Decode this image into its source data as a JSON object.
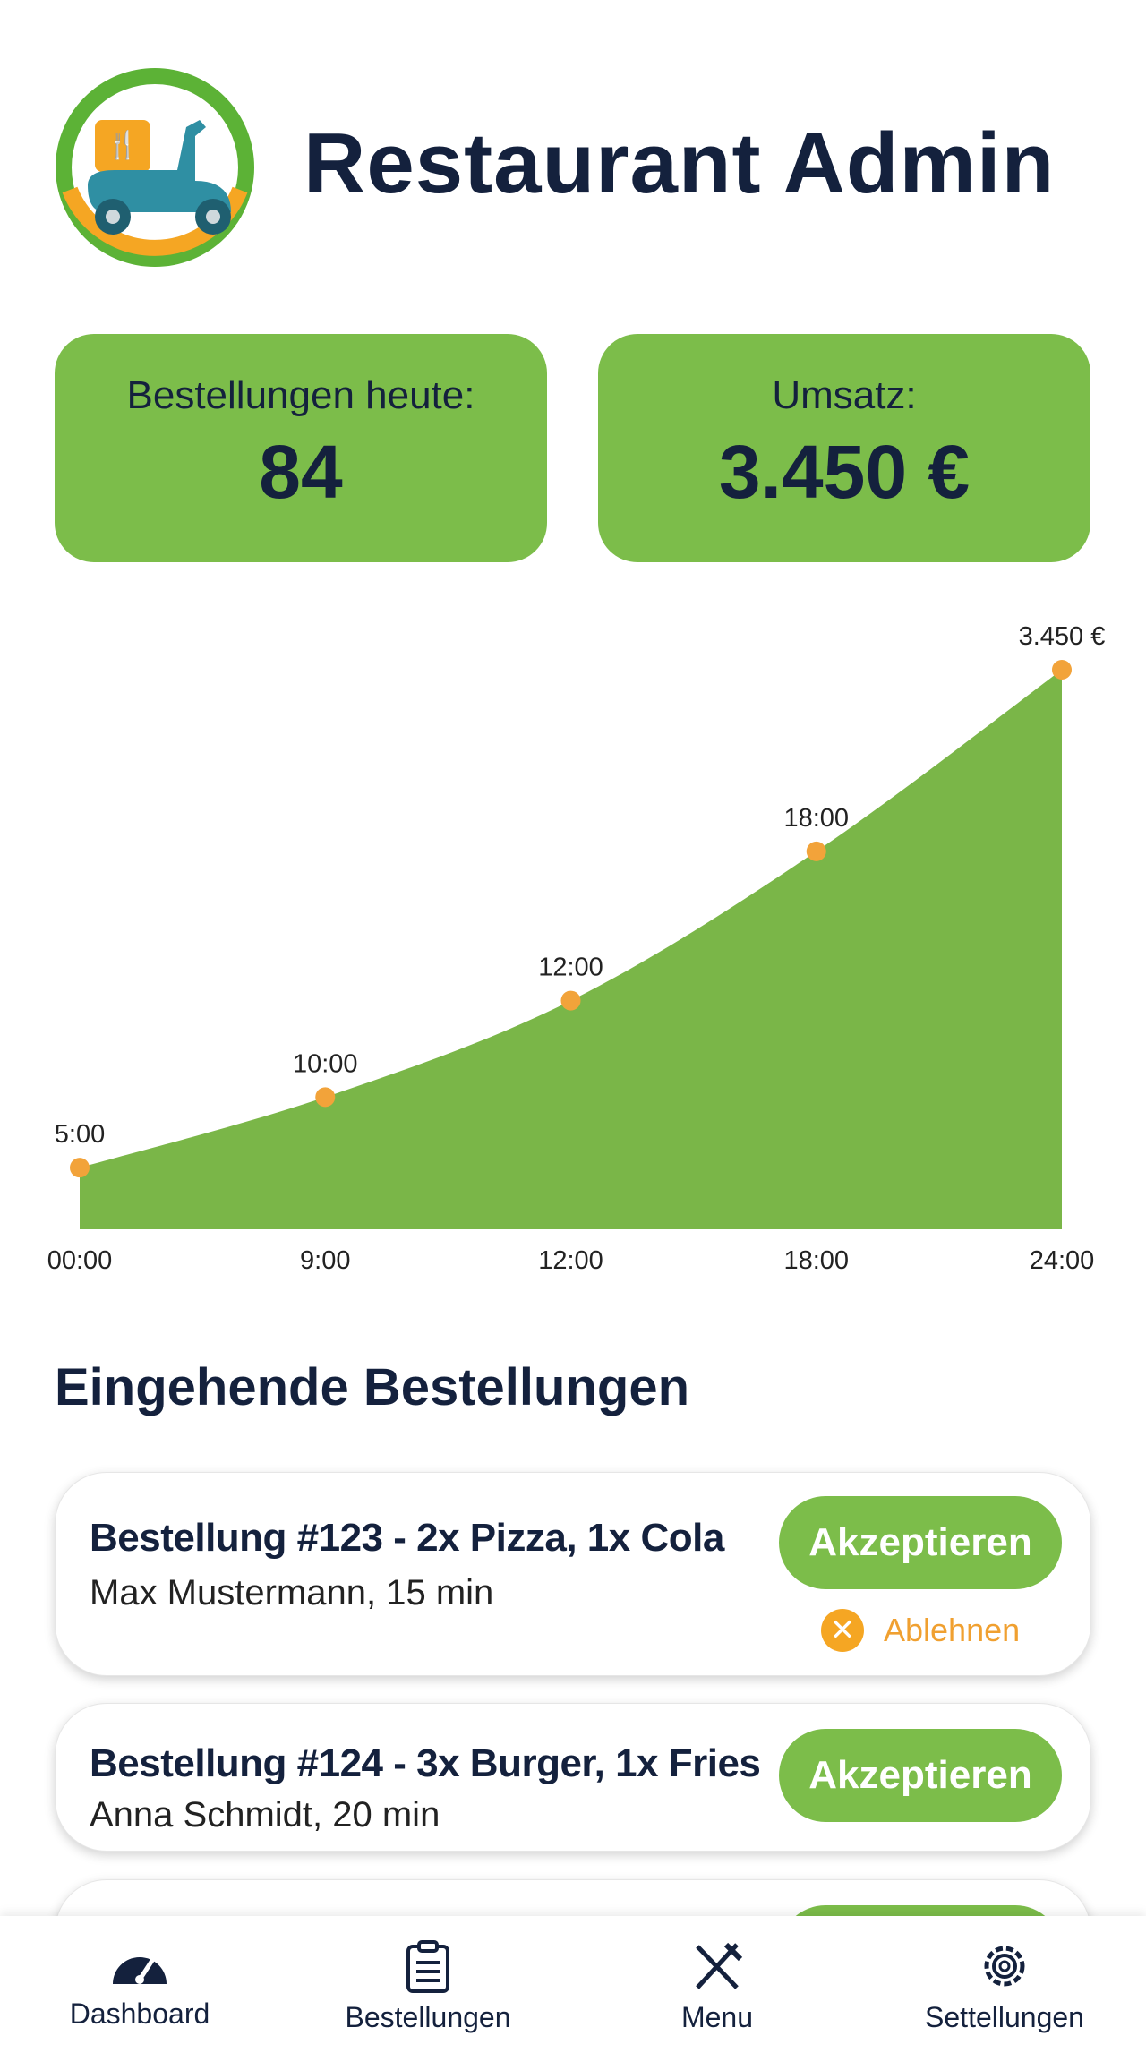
{
  "header": {
    "title": "Restaurant Admin"
  },
  "stats": [
    {
      "label": "Bestellungen heute:",
      "value": "84"
    },
    {
      "label": "Umsatz:",
      "value": "3.450 €"
    }
  ],
  "chart_data": {
    "type": "area",
    "categories": [
      "00:00",
      "9:00",
      "12:00",
      "18:00",
      "24:00"
    ],
    "values": [
      380,
      815,
      1410,
      2330,
      3450
    ],
    "annotations": [
      "5:00",
      "10:00",
      "12:00",
      "18:00",
      "3.450 €"
    ],
    "color": "#7ab648",
    "marker_color": "#f2a33a",
    "ylim": [
      0,
      3450
    ]
  },
  "orders": {
    "title": "Eingehende Bestellungen",
    "items": [
      {
        "title": "Bestellung #123 - 2x Pizza, 1x Cola",
        "subtitle": "Max Mustermann, 15 min",
        "accept": "Akzeptieren",
        "reject": "Ablehnen"
      },
      {
        "title": "Bestellung #124 - 3x Burger, 1x Fries",
        "subtitle": "Anna Schmidt, 20 min",
        "accept": "Akzeptieren"
      }
    ]
  },
  "nav": [
    "Dashboard",
    "Bestellungen",
    "Menu",
    "Settellungen"
  ]
}
